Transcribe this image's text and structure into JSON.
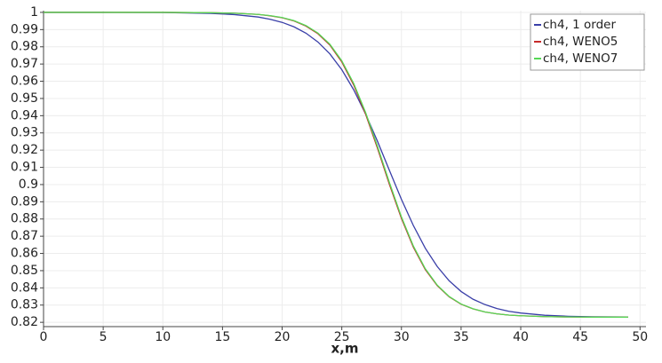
{
  "chart_data": {
    "type": "line",
    "xlabel": "x,m",
    "x": [
      0,
      5,
      10,
      14,
      16,
      18,
      19,
      20,
      21,
      22,
      23,
      24,
      25,
      26,
      27,
      28,
      29,
      30,
      31,
      32,
      33,
      34,
      35,
      36,
      37,
      38,
      39,
      40,
      42,
      44,
      46,
      49
    ],
    "series": [
      {
        "name": "ch4, 1 order",
        "color": "#3a3fa8",
        "values": [
          1.0,
          1.0,
          0.9999,
          0.9994,
          0.9987,
          0.9973,
          0.996,
          0.9942,
          0.9916,
          0.9879,
          0.9828,
          0.9759,
          0.9667,
          0.955,
          0.9409,
          0.925,
          0.9081,
          0.8914,
          0.8762,
          0.863,
          0.8524,
          0.8441,
          0.8379,
          0.8334,
          0.8303,
          0.828,
          0.8264,
          0.8254,
          0.8241,
          0.8235,
          0.8232,
          0.8231
        ]
      },
      {
        "name": "ch4, WENO5",
        "color": "#c62a2a",
        "values": [
          1.0,
          1.0,
          1.0,
          0.9998,
          0.9995,
          0.9988,
          0.998,
          0.9969,
          0.995,
          0.992,
          0.9876,
          0.981,
          0.9712,
          0.9578,
          0.9408,
          0.9209,
          0.8999,
          0.8803,
          0.8636,
          0.8506,
          0.8413,
          0.8348,
          0.8305,
          0.8278,
          0.826,
          0.8249,
          0.8242,
          0.8238,
          0.8233,
          0.8231,
          0.823,
          0.823
        ]
      },
      {
        "name": "ch4, WENO7",
        "color": "#55d855",
        "values": [
          1.0,
          1.0,
          1.0,
          0.9998,
          0.9995,
          0.9988,
          0.9981,
          0.997,
          0.9952,
          0.9923,
          0.988,
          0.9815,
          0.9719,
          0.9587,
          0.9418,
          0.922,
          0.901,
          0.8812,
          0.8643,
          0.8511,
          0.8416,
          0.835,
          0.8306,
          0.8279,
          0.826,
          0.8249,
          0.8242,
          0.8238,
          0.8233,
          0.8231,
          0.823,
          0.823
        ]
      }
    ],
    "xlim": [
      0,
      50.5
    ],
    "xticks": [
      0,
      5,
      10,
      15,
      20,
      25,
      30,
      35,
      40,
      45,
      50
    ],
    "ylim": [
      0.8175,
      1.001
    ],
    "yticks": [
      0.82,
      0.83,
      0.84,
      0.85,
      0.86,
      0.87,
      0.88,
      0.89,
      0.9,
      0.91,
      0.92,
      0.93,
      0.94,
      0.95,
      0.96,
      0.97,
      0.98,
      0.99,
      1
    ],
    "grid": true,
    "legend": "top-right"
  }
}
